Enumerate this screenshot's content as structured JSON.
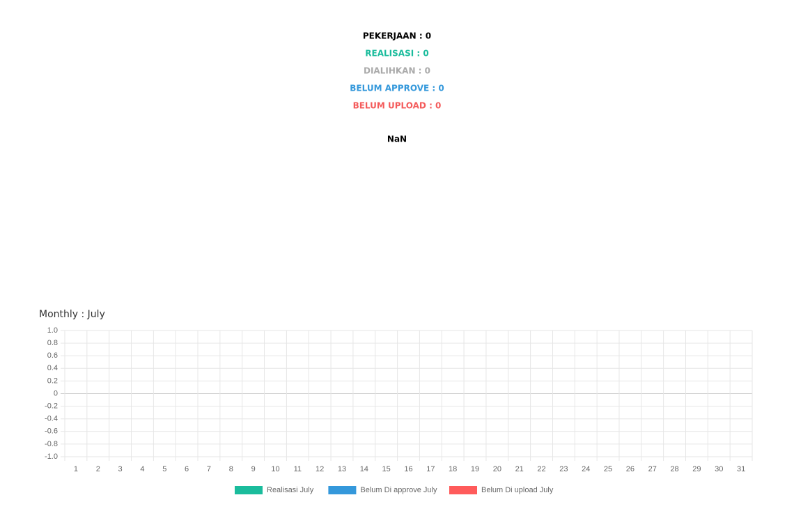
{
  "stats": [
    "PEKERJAAN : 0",
    "REALISASI : 0",
    "DIALIHKAN : 0",
    "BELUM APPROVE : 0",
    "BELUM UPLOAD : 0"
  ],
  "ratio": "NaN",
  "chart_data": {
    "type": "bar",
    "title": "Monthly : July",
    "categories": [
      "1",
      "2",
      "3",
      "4",
      "5",
      "6",
      "7",
      "8",
      "9",
      "10",
      "11",
      "12",
      "13",
      "14",
      "15",
      "16",
      "17",
      "18",
      "19",
      "20",
      "21",
      "22",
      "23",
      "24",
      "25",
      "26",
      "27",
      "28",
      "29",
      "30",
      "31"
    ],
    "series": [
      {
        "name": "Realisasi July",
        "color": "#1abc9c",
        "values": [
          0,
          0,
          0,
          0,
          0,
          0,
          0,
          0,
          0,
          0,
          0,
          0,
          0,
          0,
          0,
          0,
          0,
          0,
          0,
          0,
          0,
          0,
          0,
          0,
          0,
          0,
          0,
          0,
          0,
          0,
          0
        ]
      },
      {
        "name": "Belum Di approve July",
        "color": "#3498db",
        "values": [
          0,
          0,
          0,
          0,
          0,
          0,
          0,
          0,
          0,
          0,
          0,
          0,
          0,
          0,
          0,
          0,
          0,
          0,
          0,
          0,
          0,
          0,
          0,
          0,
          0,
          0,
          0,
          0,
          0,
          0,
          0
        ]
      },
      {
        "name": "Belum Di upload July",
        "color": "#ff5b5b",
        "values": [
          0,
          0,
          0,
          0,
          0,
          0,
          0,
          0,
          0,
          0,
          0,
          0,
          0,
          0,
          0,
          0,
          0,
          0,
          0,
          0,
          0,
          0,
          0,
          0,
          0,
          0,
          0,
          0,
          0,
          0,
          0
        ]
      }
    ],
    "ylim": [
      -1,
      1
    ],
    "yticks": [
      {
        "value": 1,
        "label": "1.0"
      },
      0.8,
      0.6,
      0.4,
      0.2,
      0,
      -0.2,
      -0.4,
      -0.6,
      -0.8,
      {
        "value": -1,
        "label": "-1.0"
      }
    ],
    "grid": true,
    "legend": "bottom"
  }
}
